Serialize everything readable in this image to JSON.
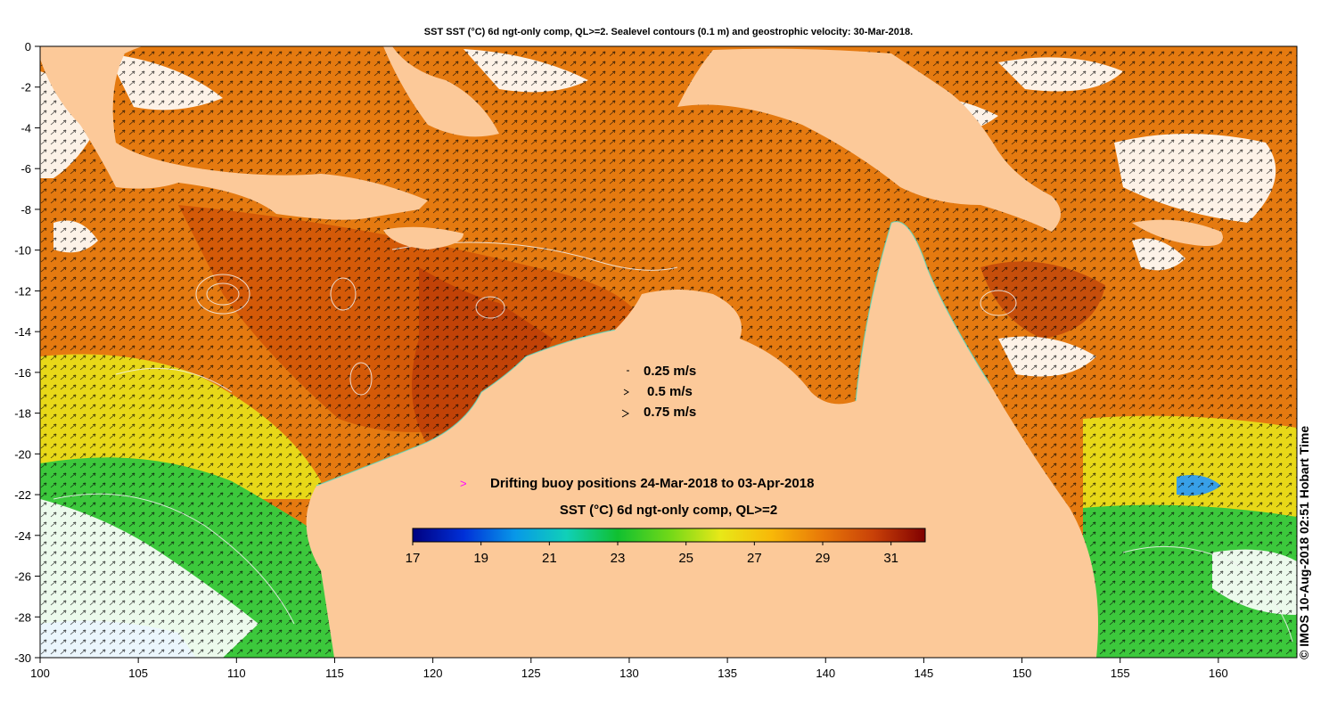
{
  "title": "SST SST (°C) 6d ngt-only comp, QL>=2. Sealevel contours (0.1 m) and geostrophic velocity: 30-Mar-2018.",
  "map": {
    "lon_range": [
      100,
      164
    ],
    "lat_range": [
      -30,
      0
    ],
    "x_ticks": [
      "100",
      "105",
      "110",
      "115",
      "120",
      "125",
      "130",
      "135",
      "140",
      "145",
      "150",
      "155",
      "160"
    ],
    "y_ticks": [
      "0",
      "-2",
      "-4",
      "-6",
      "-8",
      "-10",
      "-12",
      "-14",
      "-16",
      "-18",
      "-20",
      "-22",
      "-24",
      "-26",
      "-28",
      "-30"
    ],
    "land_color": "#fcc999",
    "ocean_color": "#e57a10",
    "colors": {
      "deep_orange": "#d45a08",
      "dark_red": "#b03008",
      "yellow": "#e8d818",
      "green": "#3cc83c",
      "cyan_blue": "#38a0e8",
      "cloud": "#ffffff"
    }
  },
  "velocity_legend": {
    "items": [
      "0.25 m/s",
      "0.5 m/s",
      "0.75 m/s"
    ]
  },
  "buoy_legend": {
    "symbol": ">",
    "symbol_color": "#ff00ff",
    "label": "Drifting buoy positions 24-Mar-2018 to 03-Apr-2018"
  },
  "colorbar": {
    "title": "SST (°C) 6d ngt-only comp, QL>=2",
    "min": 17,
    "max": 32,
    "tick_labels": [
      "17",
      "19",
      "21",
      "23",
      "25",
      "27",
      "29",
      "31"
    ],
    "stops": [
      "#000080",
      "#0030d8",
      "#0898e8",
      "#10d0b8",
      "#10c030",
      "#70d818",
      "#e8e818",
      "#f8b808",
      "#e87808",
      "#c84008",
      "#800000"
    ]
  },
  "credit": "© IMOS 10-Aug-2018 02:51 Hobart Time"
}
